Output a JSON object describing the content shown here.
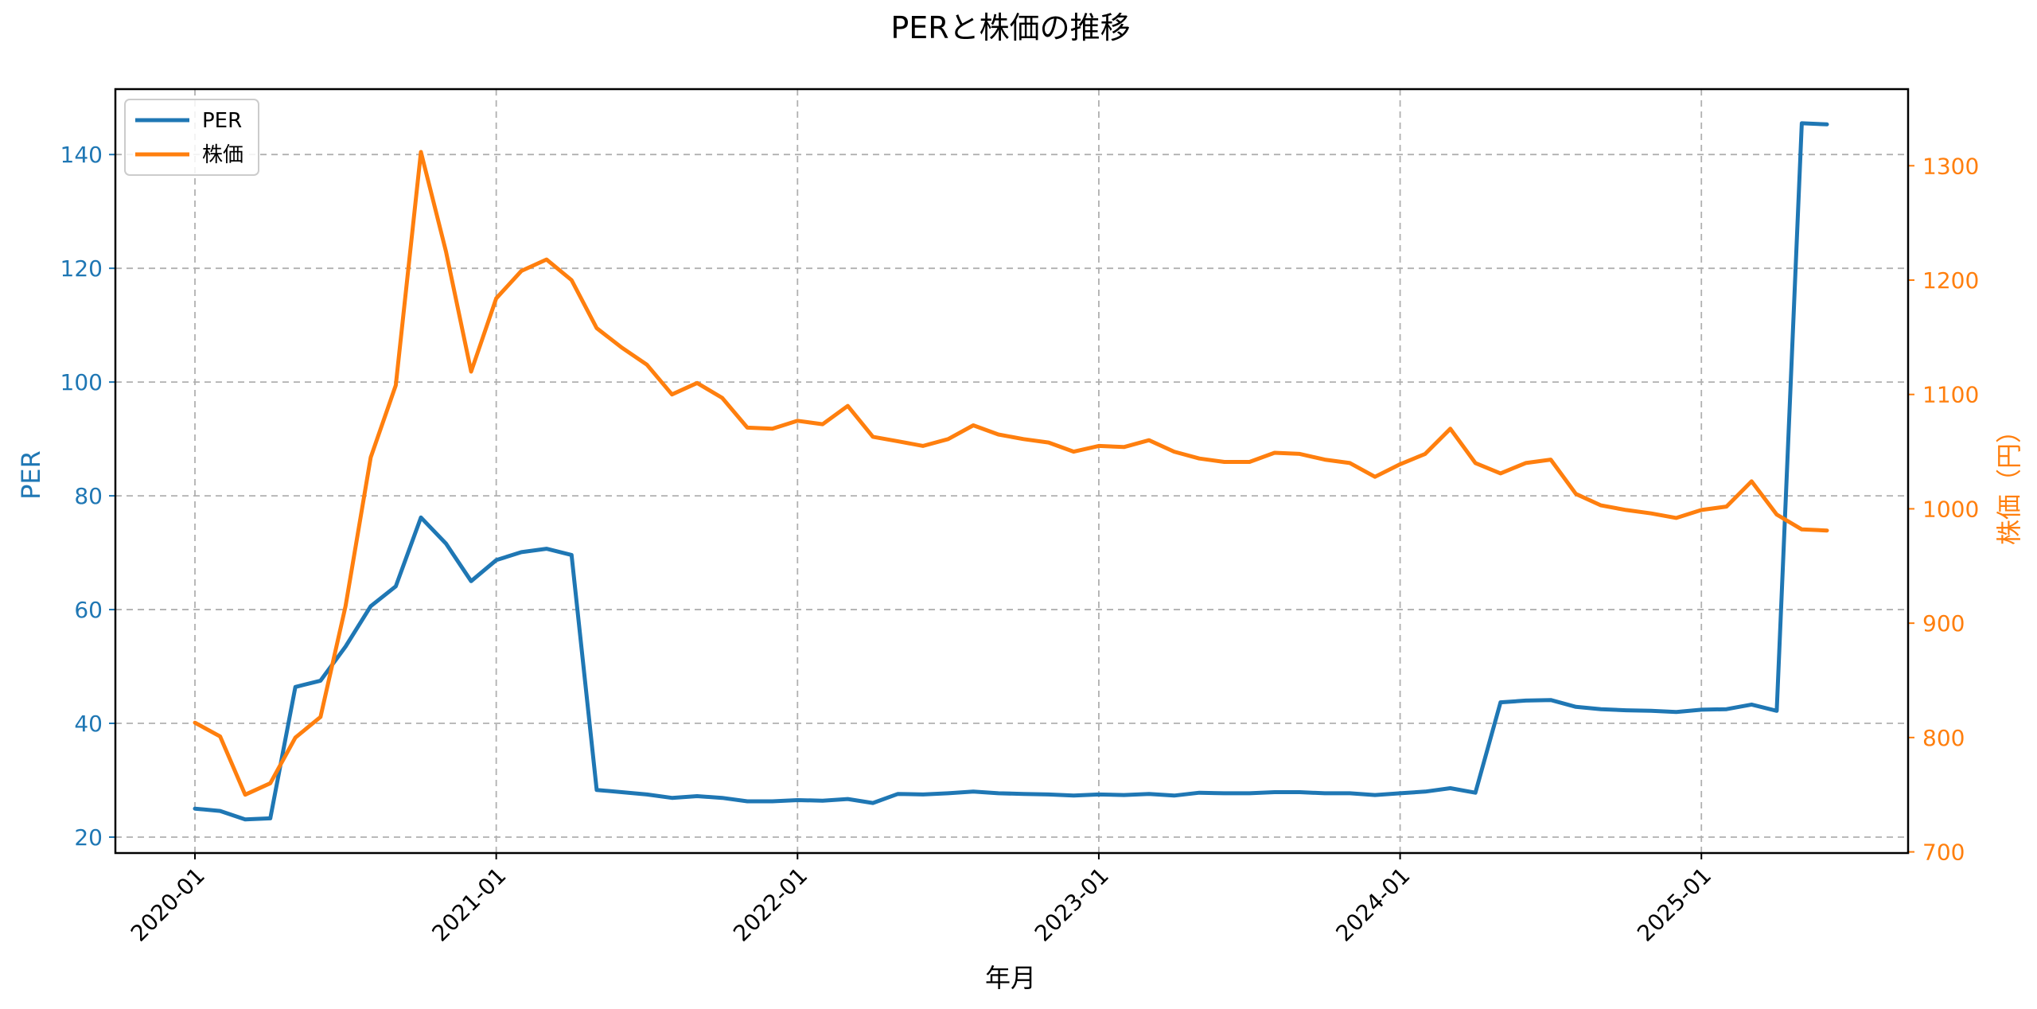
{
  "chart_data": {
    "type": "line",
    "title": "PERと株価の推移",
    "xlabel": "年月",
    "ylabel_left": "PER",
    "ylabel_right": "株価（円）",
    "grid": true,
    "legend_position": "top-left",
    "x_range": [
      0,
      66
    ],
    "x_ticks": [
      {
        "index": 0,
        "label": "2020-01"
      },
      {
        "index": 12,
        "label": "2021-01"
      },
      {
        "index": 24,
        "label": "2022-01"
      },
      {
        "index": 36,
        "label": "2023-01"
      },
      {
        "index": 48,
        "label": "2024-01"
      },
      {
        "index": 60,
        "label": "2025-01"
      }
    ],
    "ylim_left": [
      17.2,
      151.5
    ],
    "ylim_right": [
      699,
      1367
    ],
    "yticks_left": [
      20,
      40,
      60,
      80,
      100,
      120,
      140
    ],
    "yticks_right": [
      700,
      800,
      900,
      1000,
      1100,
      1200,
      1300
    ],
    "colors": {
      "per": "#1f77b4",
      "price": "#ff7f0e",
      "grid": "#b0b0b0",
      "axis": "#000000"
    },
    "series": [
      {
        "name": "PER",
        "axis": "left",
        "x": [
          0,
          1,
          2,
          3,
          4,
          5,
          6,
          7,
          8,
          9,
          10,
          11,
          12,
          13,
          14,
          15,
          16,
          17,
          18,
          19,
          20,
          21,
          22,
          23,
          24,
          25,
          26,
          27,
          28,
          29,
          30,
          31,
          32,
          33,
          34,
          35,
          36,
          37,
          38,
          39,
          40,
          41,
          42,
          43,
          44,
          45,
          46,
          47,
          48,
          49,
          50,
          51,
          52,
          53,
          54,
          55,
          56,
          57,
          58,
          59,
          60,
          61,
          62,
          63,
          64,
          65
        ],
        "values": [
          25.0,
          24.6,
          23.1,
          23.3,
          46.4,
          47.5,
          53.5,
          60.6,
          64.1,
          76.2,
          71.6,
          65.0,
          68.7,
          70.1,
          70.7,
          69.6,
          28.3,
          27.9,
          27.5,
          26.9,
          27.2,
          26.9,
          26.3,
          26.3,
          26.5,
          26.4,
          26.7,
          26.0,
          27.6,
          27.5,
          27.7,
          28.0,
          27.7,
          27.6,
          27.5,
          27.3,
          27.5,
          27.4,
          27.6,
          27.3,
          27.8,
          27.7,
          27.7,
          27.9,
          27.9,
          27.7,
          27.7,
          27.4,
          27.7,
          28.0,
          28.6,
          27.8,
          43.7,
          44.0,
          44.1,
          42.9,
          42.5,
          42.3,
          42.2,
          42.0,
          42.4,
          42.5,
          43.3,
          42.2,
          145.5,
          145.3
        ]
      },
      {
        "name": "株価",
        "axis": "right",
        "x": [
          0,
          1,
          2,
          3,
          4,
          5,
          6,
          7,
          8,
          9,
          10,
          11,
          12,
          13,
          14,
          15,
          16,
          17,
          18,
          19,
          20,
          21,
          22,
          23,
          24,
          25,
          26,
          27,
          28,
          29,
          30,
          31,
          32,
          33,
          34,
          35,
          36,
          37,
          38,
          39,
          40,
          41,
          42,
          43,
          44,
          45,
          46,
          47,
          48,
          49,
          50,
          51,
          52,
          53,
          54,
          55,
          56,
          57,
          58,
          59,
          60,
          61,
          62,
          63,
          64,
          65
        ],
        "values": [
          813,
          801,
          750,
          760,
          800,
          818,
          915,
          1045,
          1108,
          1312,
          1225,
          1120,
          1184,
          1208,
          1218,
          1200,
          1158,
          1141,
          1126,
          1100,
          1110,
          1097,
          1071,
          1070,
          1077,
          1074,
          1090,
          1063,
          1059,
          1055,
          1061,
          1073,
          1065,
          1061,
          1058,
          1050,
          1055,
          1054,
          1060,
          1050,
          1044,
          1041,
          1041,
          1049,
          1048,
          1043,
          1040,
          1028,
          1039,
          1048,
          1070,
          1040,
          1031,
          1040,
          1043,
          1013,
          1003,
          999,
          996,
          992,
          999,
          1002,
          1024,
          995,
          982,
          981
        ]
      }
    ]
  }
}
